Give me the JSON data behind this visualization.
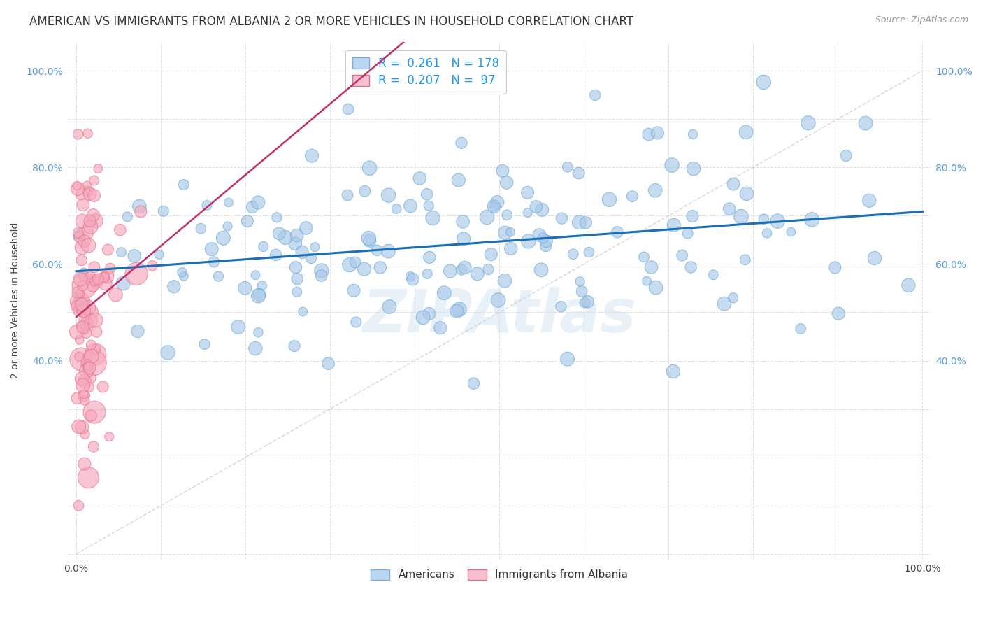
{
  "title": "AMERICAN VS IMMIGRANTS FROM ALBANIA 2 OR MORE VEHICLES IN HOUSEHOLD CORRELATION CHART",
  "source": "Source: ZipAtlas.com",
  "ylabel": "2 or more Vehicles in Household",
  "watermark": "ZIPAtlas",
  "legend_blue_r": "0.261",
  "legend_blue_n": "178",
  "legend_pink_r": "0.207",
  "legend_pink_n": " 97",
  "blue_color": "#a8c8e8",
  "blue_edge": "#6aaad4",
  "pink_color": "#f5a8bc",
  "pink_edge": "#e8708a",
  "trend_blue": "#1a6fb5",
  "trend_pink": "#c0306a",
  "diag_color": "#cccccc",
  "background": "#ffffff",
  "grid_color": "#e0e0e0",
  "title_fontsize": 12,
  "label_fontsize": 10,
  "tick_fontsize": 10,
  "legend_fontsize": 12,
  "blue_seed": 42,
  "pink_seed": 123,
  "blue_n": 178,
  "pink_n": 97
}
